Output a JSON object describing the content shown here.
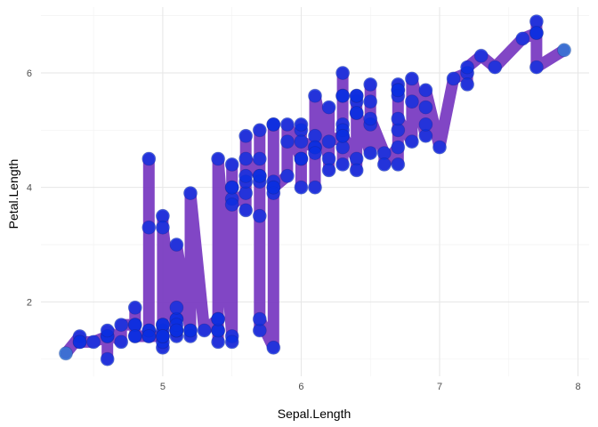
{
  "chart_data": {
    "type": "line",
    "xlabel": "Sepal.Length",
    "ylabel": "Petal.Length",
    "xlim": [
      4.12,
      8.08
    ],
    "ylim": [
      0.7,
      7.15
    ],
    "x_ticks": [
      5,
      6,
      7,
      8
    ],
    "y_ticks": [
      2,
      4,
      6
    ],
    "x_tick_labels": [
      "5",
      "6",
      "7",
      "8"
    ],
    "y_tick_labels": [
      "2",
      "4",
      "6"
    ],
    "grid": true,
    "legend": "none",
    "colors": {
      "line": "#7a3cc2",
      "point": "#0a2ee0",
      "point_start": "#2b7bd6"
    },
    "points": [
      [
        4.3,
        1.1
      ],
      [
        4.4,
        1.4
      ],
      [
        4.4,
        1.3
      ],
      [
        4.4,
        1.3
      ],
      [
        4.5,
        1.3
      ],
      [
        4.6,
        1.4
      ],
      [
        4.6,
        1.0
      ],
      [
        4.6,
        1.4
      ],
      [
        4.6,
        1.5
      ],
      [
        4.7,
        1.3
      ],
      [
        4.7,
        1.6
      ],
      [
        4.8,
        1.6
      ],
      [
        4.8,
        1.4
      ],
      [
        4.8,
        1.9
      ],
      [
        4.8,
        1.6
      ],
      [
        4.8,
        1.4
      ],
      [
        4.9,
        1.4
      ],
      [
        4.9,
        1.5
      ],
      [
        4.9,
        1.5
      ],
      [
        4.9,
        4.5
      ],
      [
        4.9,
        3.3
      ],
      [
        4.9,
        1.4
      ],
      [
        5.0,
        1.4
      ],
      [
        5.0,
        1.5
      ],
      [
        5.0,
        1.6
      ],
      [
        5.0,
        1.2
      ],
      [
        5.0,
        1.3
      ],
      [
        5.0,
        1.6
      ],
      [
        5.0,
        1.4
      ],
      [
        5.0,
        1.4
      ],
      [
        5.0,
        3.5
      ],
      [
        5.0,
        3.3
      ],
      [
        5.1,
        1.4
      ],
      [
        5.1,
        1.5
      ],
      [
        5.1,
        1.5
      ],
      [
        5.1,
        1.7
      ],
      [
        5.1,
        1.7
      ],
      [
        5.1,
        1.9
      ],
      [
        5.1,
        1.6
      ],
      [
        5.1,
        1.5
      ],
      [
        5.1,
        3.0
      ],
      [
        5.2,
        1.5
      ],
      [
        5.2,
        1.4
      ],
      [
        5.2,
        1.5
      ],
      [
        5.2,
        3.9
      ],
      [
        5.3,
        1.5
      ],
      [
        5.4,
        1.7
      ],
      [
        5.4,
        1.5
      ],
      [
        5.4,
        1.3
      ],
      [
        5.4,
        1.5
      ],
      [
        5.4,
        1.7
      ],
      [
        5.4,
        4.5
      ],
      [
        5.5,
        1.4
      ],
      [
        5.5,
        1.3
      ],
      [
        5.5,
        4.0
      ],
      [
        5.5,
        3.8
      ],
      [
        5.5,
        4.4
      ],
      [
        5.5,
        4.0
      ],
      [
        5.5,
        3.7
      ],
      [
        5.6,
        3.9
      ],
      [
        5.6,
        4.9
      ],
      [
        5.6,
        4.1
      ],
      [
        5.6,
        4.2
      ],
      [
        5.6,
        3.6
      ],
      [
        5.6,
        4.5
      ],
      [
        5.7,
        4.2
      ],
      [
        5.7,
        4.5
      ],
      [
        5.7,
        4.1
      ],
      [
        5.7,
        4.2
      ],
      [
        5.7,
        5.0
      ],
      [
        5.7,
        3.5
      ],
      [
        5.7,
        1.5
      ],
      [
        5.7,
        1.7
      ],
      [
        5.8,
        1.2
      ],
      [
        5.8,
        4.0
      ],
      [
        5.8,
        4.1
      ],
      [
        5.8,
        5.1
      ],
      [
        5.8,
        5.1
      ],
      [
        5.8,
        3.9
      ],
      [
        5.8,
        4.0
      ],
      [
        5.9,
        4.2
      ],
      [
        5.9,
        4.8
      ],
      [
        5.9,
        5.1
      ],
      [
        6.0,
        4.5
      ],
      [
        6.0,
        5.0
      ],
      [
        6.0,
        4.0
      ],
      [
        6.0,
        5.1
      ],
      [
        6.0,
        4.5
      ],
      [
        6.0,
        4.8
      ],
      [
        6.1,
        4.7
      ],
      [
        6.1,
        4.0
      ],
      [
        6.1,
        4.9
      ],
      [
        6.1,
        4.7
      ],
      [
        6.1,
        4.6
      ],
      [
        6.1,
        5.6
      ],
      [
        6.2,
        4.5
      ],
      [
        6.2,
        4.3
      ],
      [
        6.2,
        5.4
      ],
      [
        6.2,
        4.8
      ],
      [
        6.3,
        4.9
      ],
      [
        6.3,
        4.7
      ],
      [
        6.3,
        4.4
      ],
      [
        6.3,
        5.1
      ],
      [
        6.3,
        6.0
      ],
      [
        6.3,
        5.6
      ],
      [
        6.3,
        5.0
      ],
      [
        6.3,
        5.6
      ],
      [
        6.3,
        4.9
      ],
      [
        6.4,
        4.5
      ],
      [
        6.4,
        4.3
      ],
      [
        6.4,
        5.3
      ],
      [
        6.4,
        5.5
      ],
      [
        6.4,
        5.6
      ],
      [
        6.4,
        5.6
      ],
      [
        6.4,
        5.3
      ],
      [
        6.5,
        4.6
      ],
      [
        6.5,
        5.1
      ],
      [
        6.5,
        5.8
      ],
      [
        6.5,
        5.5
      ],
      [
        6.5,
        5.2
      ],
      [
        6.6,
        4.6
      ],
      [
        6.6,
        4.4
      ],
      [
        6.7,
        4.7
      ],
      [
        6.7,
        4.4
      ],
      [
        6.7,
        5.0
      ],
      [
        6.7,
        5.8
      ],
      [
        6.7,
        5.7
      ],
      [
        6.7,
        5.6
      ],
      [
        6.7,
        5.7
      ],
      [
        6.7,
        5.2
      ],
      [
        6.8,
        4.8
      ],
      [
        6.8,
        5.5
      ],
      [
        6.8,
        5.9
      ],
      [
        6.9,
        4.9
      ],
      [
        6.9,
        5.1
      ],
      [
        6.9,
        5.4
      ],
      [
        6.9,
        5.7
      ],
      [
        7.0,
        4.7
      ],
      [
        7.1,
        5.9
      ],
      [
        7.2,
        6.0
      ],
      [
        7.2,
        5.8
      ],
      [
        7.2,
        6.1
      ],
      [
        7.3,
        6.3
      ],
      [
        7.4,
        6.1
      ],
      [
        7.6,
        6.6
      ],
      [
        7.7,
        6.7
      ],
      [
        7.7,
        6.9
      ],
      [
        7.7,
        6.7
      ],
      [
        7.7,
        6.1
      ],
      [
        7.9,
        6.4
      ]
    ]
  }
}
